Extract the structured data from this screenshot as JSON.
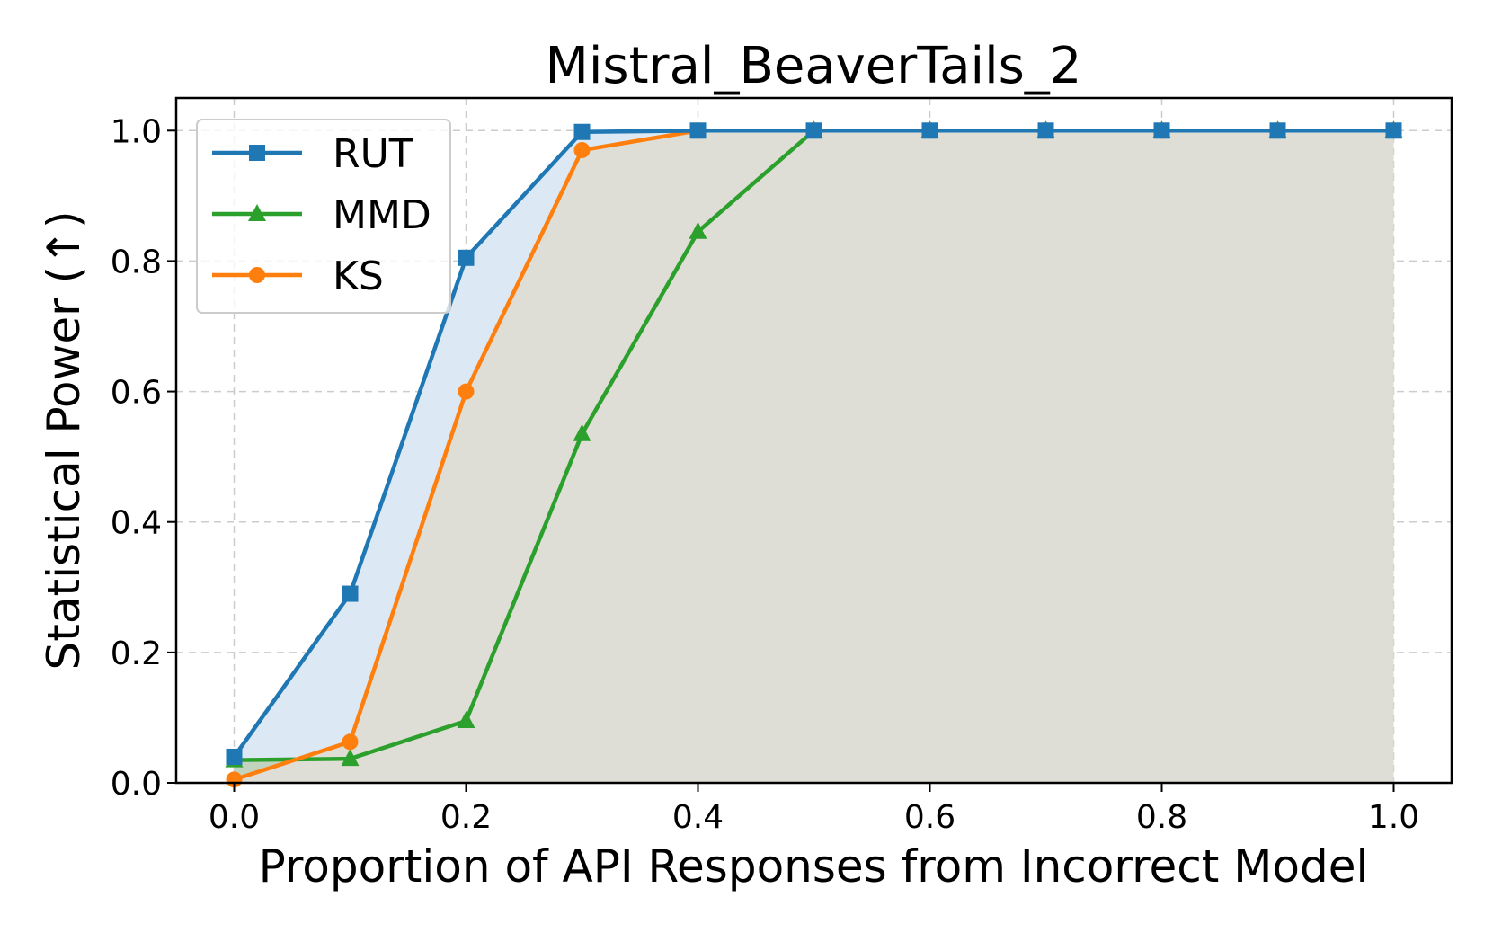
{
  "chart_data": {
    "type": "line",
    "title": "Mistral_BeaverTails_2",
    "xlabel": "Proportion of API Responses from Incorrect Model",
    "ylabel": "Statistical Power (↑)",
    "xlim": [
      -0.05,
      1.05
    ],
    "ylim": [
      0,
      1.05
    ],
    "xticks": [
      "0.0",
      "0.2",
      "0.4",
      "0.6",
      "0.8",
      "1.0"
    ],
    "yticks": [
      "0.0",
      "0.2",
      "0.4",
      "0.6",
      "0.8",
      "1.0"
    ],
    "grid": true,
    "legend_position": "top-left",
    "x": [
      0.0,
      0.1,
      0.2,
      0.3,
      0.4,
      0.5,
      0.6,
      0.7,
      0.8,
      0.9,
      1.0
    ],
    "series": [
      {
        "name": "RUT",
        "marker": "square",
        "color": "#1f77b4",
        "fill": "#dce8f3",
        "values": [
          0.04,
          0.29,
          0.805,
          0.998,
          1.0,
          1.0,
          1.0,
          1.0,
          1.0,
          1.0,
          1.0
        ]
      },
      {
        "name": "MMD",
        "marker": "triangle",
        "color": "#2ca02c",
        "fill": "#c2d3bf",
        "values": [
          0.035,
          0.037,
          0.095,
          0.535,
          0.845,
          1.0,
          1.0,
          1.0,
          1.0,
          1.0,
          1.0
        ]
      },
      {
        "name": "KS",
        "marker": "circle",
        "color": "#ff7f0e",
        "fill": "#deddd6",
        "values": [
          0.005,
          0.063,
          0.6,
          0.97,
          1.0,
          1.0,
          1.0,
          1.0,
          1.0,
          1.0,
          1.0
        ]
      }
    ]
  }
}
